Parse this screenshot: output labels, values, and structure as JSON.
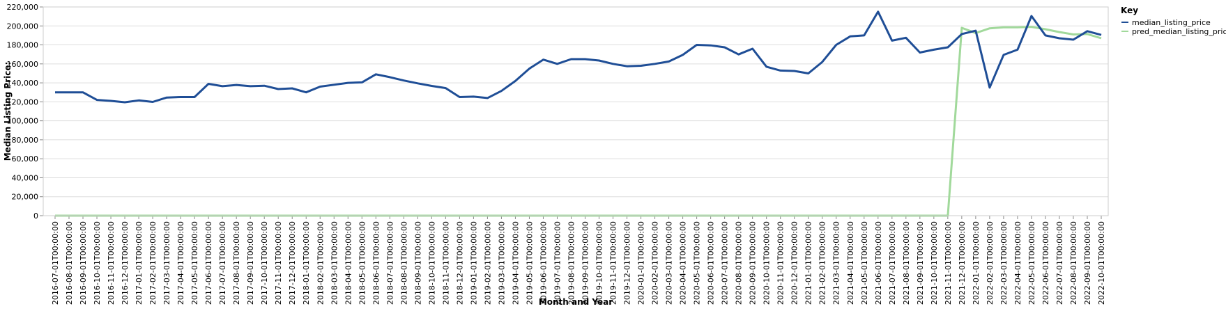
{
  "chart_data": {
    "type": "line",
    "xlabel": "Month and Year",
    "ylabel": "Median Listing Price:",
    "ylim": [
      0,
      220000
    ],
    "y_ticks": [
      "0",
      "20,000",
      "40,000",
      "60,000",
      "80,000",
      "100,000",
      "120,000",
      "140,000",
      "160,000",
      "180,000",
      "200,000",
      "220,000"
    ],
    "grid": true,
    "legend": {
      "title": "Key",
      "placement": "top-right"
    },
    "x": [
      "2016-07-01T00:00:00",
      "2016-08-01T00:00:00",
      "2016-09-01T00:00:00",
      "2016-10-01T00:00:00",
      "2016-11-01T00:00:00",
      "2016-12-01T00:00:00",
      "2017-01-01T00:00:00",
      "2017-02-01T00:00:00",
      "2017-03-01T00:00:00",
      "2017-04-01T00:00:00",
      "2017-05-01T00:00:00",
      "2017-06-01T00:00:00",
      "2017-07-01T00:00:00",
      "2017-08-01T00:00:00",
      "2017-09-01T00:00:00",
      "2017-10-01T00:00:00",
      "2017-11-01T00:00:00",
      "2017-12-01T00:00:00",
      "2018-01-01T00:00:00",
      "2018-02-01T00:00:00",
      "2018-03-01T00:00:00",
      "2018-04-01T00:00:00",
      "2018-05-01T00:00:00",
      "2018-06-01T00:00:00",
      "2018-07-01T00:00:00",
      "2018-08-01T00:00:00",
      "2018-09-01T00:00:00",
      "2018-10-01T00:00:00",
      "2018-11-01T00:00:00",
      "2018-12-01T00:00:00",
      "2019-01-01T00:00:00",
      "2019-02-01T00:00:00",
      "2019-03-01T00:00:00",
      "2019-04-01T00:00:00",
      "2019-05-01T00:00:00",
      "2019-06-01T00:00:00",
      "2019-07-01T00:00:00",
      "2019-08-01T00:00:00",
      "2019-09-01T00:00:00",
      "2019-10-01T00:00:00",
      "2019-11-01T00:00:00",
      "2019-12-01T00:00:00",
      "2020-01-01T00:00:00",
      "2020-02-01T00:00:00",
      "2020-03-01T00:00:00",
      "2020-04-01T00:00:00",
      "2020-05-01T00:00:00",
      "2020-06-01T00:00:00",
      "2020-07-01T00:00:00",
      "2020-08-01T00:00:00",
      "2020-09-01T00:00:00",
      "2020-10-01T00:00:00",
      "2020-11-01T00:00:00",
      "2020-12-01T00:00:00",
      "2021-01-01T00:00:00",
      "2021-02-01T00:00:00",
      "2021-03-01T00:00:00",
      "2021-04-01T00:00:00",
      "2021-05-01T00:00:00",
      "2021-06-01T00:00:00",
      "2021-07-01T00:00:00",
      "2021-08-01T00:00:00",
      "2021-09-01T00:00:00",
      "2021-10-01T00:00:00",
      "2021-11-01T00:00:00",
      "2021-12-01T00:00:00",
      "2022-01-01T00:00:00",
      "2022-02-01T00:00:00",
      "2022-03-01T00:00:00",
      "2022-04-01T00:00:00",
      "2022-05-01T00:00:00",
      "2022-06-01T00:00:00",
      "2022-07-01T00:00:00",
      "2022-08-01T00:00:00",
      "2022-09-01T00:00:00",
      "2022-10-01T00:00:00"
    ],
    "series": [
      {
        "name": "median_listing_price",
        "color": "#1f4e96",
        "values": [
          130000,
          130000,
          130000,
          122000,
          121000,
          119500,
          121500,
          119900,
          124500,
          125000,
          125000,
          139000,
          136500,
          137800,
          136500,
          137000,
          133500,
          134200,
          130000,
          136000,
          138000,
          140000,
          140500,
          149000,
          146000,
          142500,
          139500,
          136800,
          134500,
          125000,
          125500,
          124000,
          131500,
          142000,
          155000,
          164500,
          160000,
          165000,
          165000,
          163500,
          160000,
          157500,
          158000,
          160000,
          162500,
          169500,
          180000,
          179500,
          177500,
          170000,
          176000,
          157000,
          153000,
          152500,
          150000,
          162000,
          180000,
          189000,
          190000,
          215000,
          184500,
          187500,
          172000,
          175000,
          177500,
          191500,
          195000,
          135000,
          169500,
          175000,
          210500,
          190000,
          187000,
          185500,
          194500,
          190500
        ]
      },
      {
        "name": "pred_median_listing_price",
        "color": "#a1d99b",
        "values": [
          0,
          0,
          0,
          0,
          0,
          0,
          0,
          0,
          0,
          0,
          0,
          0,
          0,
          0,
          0,
          0,
          0,
          0,
          0,
          0,
          0,
          0,
          0,
          0,
          0,
          0,
          0,
          0,
          0,
          0,
          0,
          0,
          0,
          0,
          0,
          0,
          0,
          0,
          0,
          0,
          0,
          0,
          0,
          0,
          0,
          0,
          0,
          0,
          0,
          0,
          0,
          0,
          0,
          0,
          0,
          0,
          0,
          0,
          0,
          0,
          0,
          0,
          0,
          0,
          0,
          198000,
          192500,
          197500,
          198500,
          198500,
          199000,
          196500,
          193500,
          191000,
          191500,
          187000
        ]
      }
    ]
  }
}
